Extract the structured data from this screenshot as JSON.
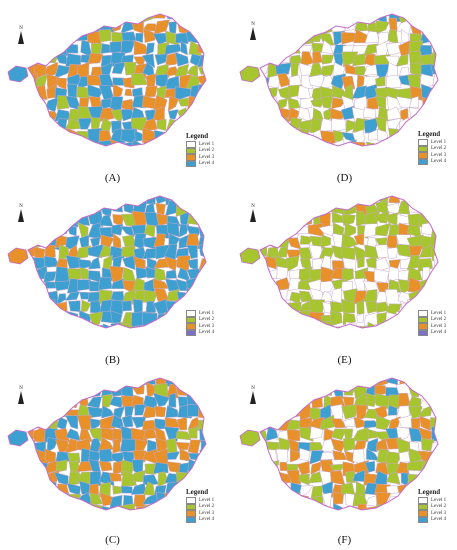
{
  "colors": {
    "level1": "#ffffff",
    "level2": "#a7c52e",
    "level3": "#e8902a",
    "level4": "#3ea0d1",
    "level4_alt": "#7b6fc9",
    "boundary": "#c56ac6"
  },
  "north_label": "N",
  "legend_title": "Legend",
  "panels": [
    {
      "caption": "(A)",
      "legend": [
        "Level 1",
        "Level 2",
        "Level 3",
        "Level 4"
      ],
      "scheme": "orange-blue"
    },
    {
      "caption": "(D)",
      "legend": [
        "Level 1",
        "Level 2",
        "Level 3",
        "Level 4"
      ],
      "scheme": "green-white"
    },
    {
      "caption": "(B)",
      "legend": [
        "Level 1",
        "Level 2",
        "Level 3",
        "Level 4"
      ],
      "scheme": "blue"
    },
    {
      "caption": "(E)",
      "legend": [
        "Level 1",
        "Level 2",
        "Level 3",
        "Level 4"
      ],
      "scheme": "green-white-2"
    },
    {
      "caption": "(C)",
      "legend": [
        "Level 1",
        "Level 2",
        "Level 3",
        "Level 4"
      ],
      "scheme": "orange-blue-2"
    },
    {
      "caption": "(F)",
      "legend": [
        "Level 1",
        "Level 2",
        "Level 3",
        "Level 4"
      ],
      "scheme": "mixed"
    }
  ]
}
